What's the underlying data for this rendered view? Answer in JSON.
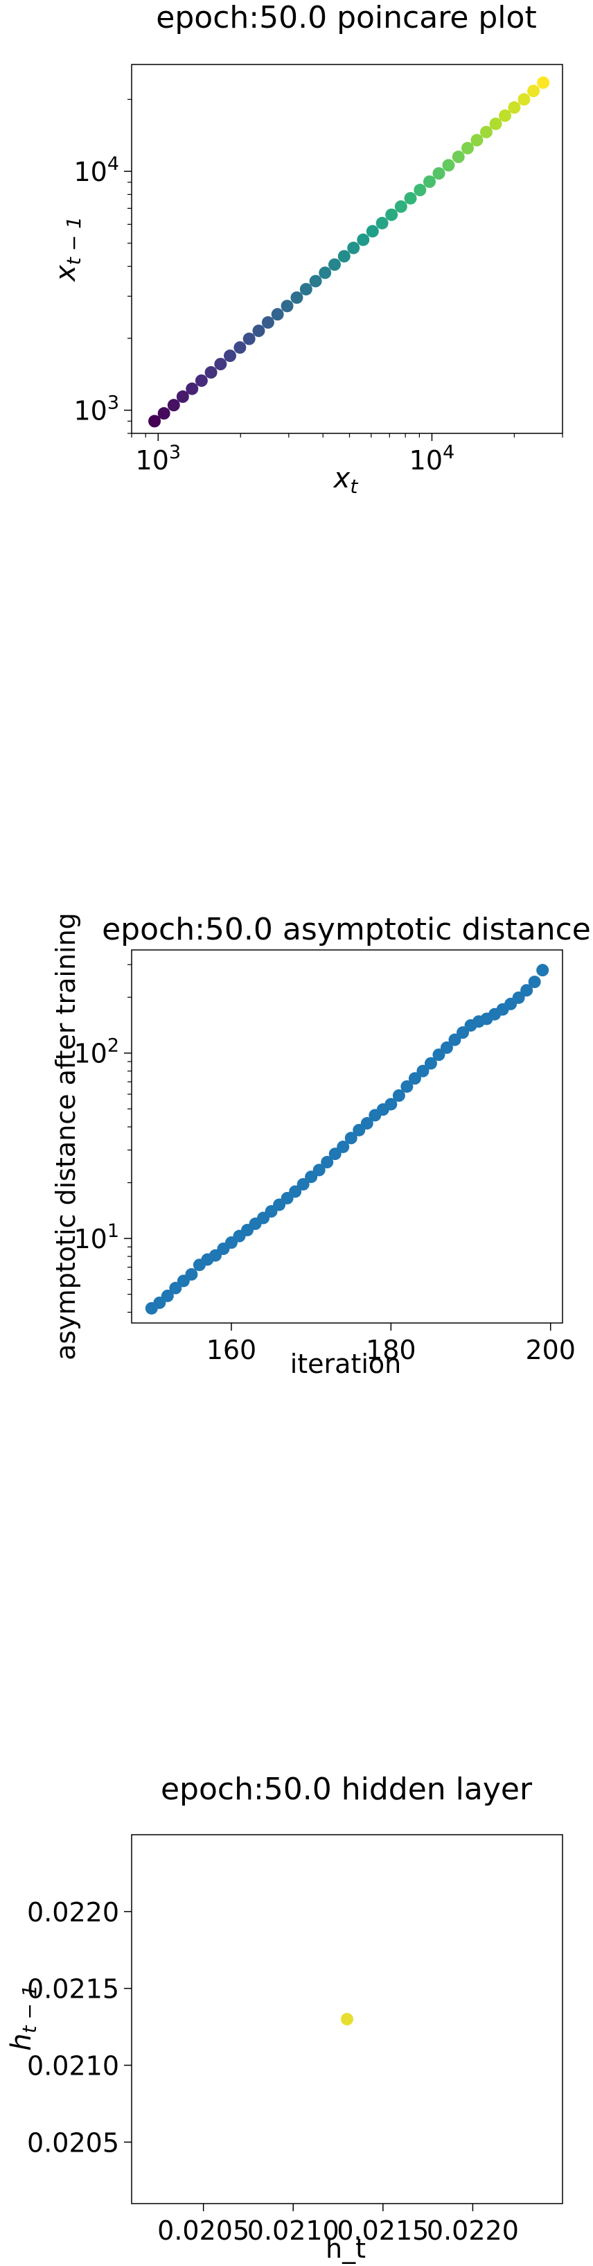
{
  "chart_data": [
    {
      "type": "scatter",
      "title": "epoch:50.0 poincare plot",
      "xlabel": "x_t",
      "ylabel": "x_{t-1}",
      "xscale": "log",
      "yscale": "log",
      "xlim": [
        800,
        30000
      ],
      "ylim": [
        800,
        28000
      ],
      "xticks": [
        {
          "value": 1000,
          "base": "10",
          "exp": "3"
        },
        {
          "value": 10000,
          "base": "10",
          "exp": "4"
        }
      ],
      "yticks": [
        {
          "value": 1000,
          "base": "10",
          "exp": "3"
        },
        {
          "value": 10000,
          "base": "10",
          "exp": "4"
        }
      ],
      "colormap": "viridis",
      "x": [
        970,
        1050,
        1140,
        1230,
        1330,
        1440,
        1560,
        1690,
        1830,
        1990,
        2150,
        2330,
        2520,
        2730,
        2960,
        3210,
        3470,
        3760,
        4070,
        4410,
        4780,
        5170,
        5610,
        6070,
        6580,
        7120,
        7710,
        8350,
        9050,
        9800,
        10600,
        11500,
        12500,
        13500,
        14600,
        15800,
        17100,
        18500,
        20000,
        21700,
        23500,
        25500
      ],
      "y": [
        900,
        970,
        1050,
        1140,
        1230,
        1330,
        1440,
        1560,
        1690,
        1830,
        1990,
        2150,
        2330,
        2520,
        2730,
        2960,
        3210,
        3470,
        3760,
        4070,
        4410,
        4780,
        5170,
        5610,
        6070,
        6580,
        7120,
        7710,
        8350,
        9050,
        9800,
        10600,
        11500,
        12500,
        13500,
        14600,
        15800,
        17100,
        18500,
        20000,
        21700,
        23500
      ]
    },
    {
      "type": "scatter",
      "title": "epoch:50.0 asymptotic distance",
      "xlabel": "iteration",
      "ylabel": "asymptotic distance after training",
      "xscale": "linear",
      "yscale": "log",
      "xlim": [
        147.5,
        201.5
      ],
      "ylim": [
        3.5,
        360
      ],
      "xticks": [
        {
          "value": 160,
          "label": "160"
        },
        {
          "value": 180,
          "label": "180"
        },
        {
          "value": 200,
          "label": "200"
        }
      ],
      "yticks": [
        {
          "value": 10,
          "base": "10",
          "exp": "1"
        },
        {
          "value": 100,
          "base": "10",
          "exp": "2"
        }
      ],
      "color": "#1f77b4",
      "x": [
        150,
        151,
        152,
        153,
        154,
        155,
        156,
        157,
        158,
        159,
        160,
        161,
        162,
        163,
        164,
        165,
        166,
        167,
        168,
        169,
        170,
        171,
        172,
        173,
        174,
        175,
        176,
        177,
        178,
        179,
        180,
        181,
        182,
        183,
        184,
        185,
        186,
        187,
        188,
        189,
        190,
        191,
        192,
        193,
        194,
        195,
        196,
        197,
        198,
        199
      ],
      "y": [
        4.2,
        4.5,
        4.9,
        5.4,
        5.9,
        6.4,
        7.2,
        7.7,
        8.1,
        8.8,
        9.5,
        10.3,
        11.1,
        12.0,
        12.9,
        14.0,
        15.2,
        16.5,
        17.9,
        19.6,
        21.5,
        23.4,
        25.8,
        28.6,
        31.2,
        34.8,
        38.4,
        41.8,
        46.2,
        49.6,
        53.0,
        59.0,
        66.0,
        73.0,
        80.0,
        88.0,
        98.0,
        107.0,
        118.0,
        129.0,
        141.0,
        148.0,
        153.0,
        162.0,
        172.0,
        184.0,
        199.0,
        218.0,
        242.0,
        280.0
      ]
    },
    {
      "type": "scatter",
      "title": "epoch:50.0 hidden layer",
      "xlabel": "h_t",
      "ylabel": "h_{t-1}",
      "xscale": "linear",
      "yscale": "linear",
      "xlim": [
        0.0201,
        0.0225
      ],
      "ylim": [
        0.0201,
        0.0225
      ],
      "xticks": [
        {
          "value": 0.0205,
          "label": "0.0205"
        },
        {
          "value": 0.021,
          "label": "0.0210"
        },
        {
          "value": 0.0215,
          "label": "0.0215"
        },
        {
          "value": 0.022,
          "label": "0.0220"
        }
      ],
      "yticks": [
        {
          "value": 0.0205,
          "label": "0.0205"
        },
        {
          "value": 0.021,
          "label": "0.0210"
        },
        {
          "value": 0.0215,
          "label": "0.0215"
        },
        {
          "value": 0.022,
          "label": "0.0220"
        }
      ],
      "color": "#e8de30",
      "x": [
        0.0213
      ],
      "y": [
        0.0213
      ]
    }
  ]
}
